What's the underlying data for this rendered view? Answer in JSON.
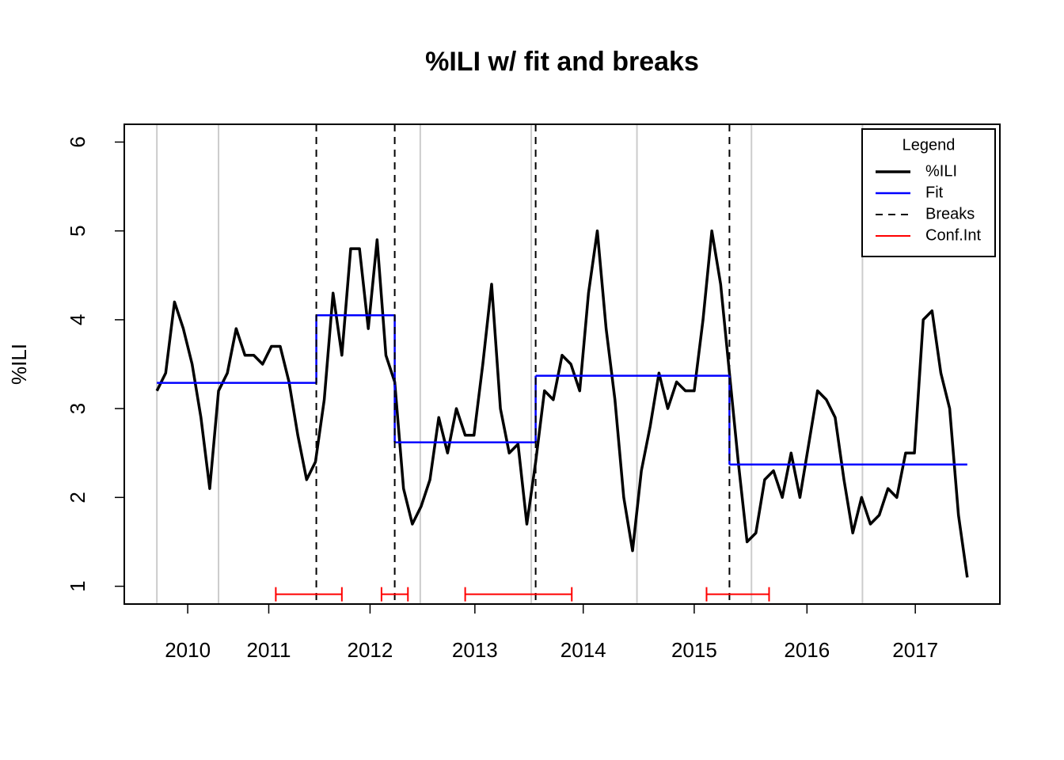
{
  "chart_data": {
    "type": "line",
    "title": "%ILI w/ fit and breaks",
    "y_label": "%ILI",
    "xlim": [
      -2.7,
      96.7
    ],
    "ylim": [
      0.8,
      6.2
    ],
    "xticks": [
      {
        "value": 4.5,
        "label": "2010"
      },
      {
        "value": 13.7,
        "label": "2011"
      },
      {
        "value": 25.2,
        "label": "2012"
      },
      {
        "value": 37.1,
        "label": "2013"
      },
      {
        "value": 49.4,
        "label": "2014"
      },
      {
        "value": 62.0,
        "label": "2015"
      },
      {
        "value": 74.8,
        "label": "2016"
      },
      {
        "value": 87.1,
        "label": "2017"
      }
    ],
    "yticks": [
      1,
      2,
      3,
      4,
      5,
      6
    ],
    "series": [
      {
        "name": "%ILI",
        "color": "#000000",
        "x": [
          1,
          2,
          3,
          4,
          5,
          6,
          7,
          8,
          9,
          10,
          11,
          12,
          13,
          14,
          15,
          16,
          17,
          18,
          19,
          20,
          21,
          22,
          23,
          24,
          25,
          26,
          27,
          28,
          29,
          30,
          31,
          32,
          33,
          34,
          35,
          36,
          37,
          38,
          39,
          40,
          41,
          42,
          43,
          44,
          45,
          46,
          47,
          48,
          49,
          50,
          51,
          52,
          53,
          54,
          55,
          56,
          57,
          58,
          59,
          60,
          61,
          62,
          63,
          64,
          65,
          66,
          67,
          68,
          69,
          70,
          71,
          72,
          73,
          74,
          75,
          76,
          77,
          78,
          79,
          80,
          81,
          82,
          83,
          84,
          85,
          86,
          87,
          88,
          89,
          90,
          91,
          92,
          93
        ],
        "values": [
          3.2,
          3.4,
          4.2,
          3.9,
          3.5,
          2.9,
          2.1,
          3.2,
          3.4,
          3.9,
          3.6,
          3.6,
          3.5,
          3.7,
          3.7,
          3.3,
          2.7,
          2.2,
          2.4,
          3.1,
          4.3,
          3.6,
          4.8,
          4.8,
          3.9,
          4.9,
          3.6,
          3.3,
          2.1,
          1.7,
          1.9,
          2.2,
          2.9,
          2.5,
          3.0,
          2.7,
          2.7,
          3.5,
          4.4,
          3.0,
          2.5,
          2.6,
          1.7,
          2.4,
          3.2,
          3.1,
          3.6,
          3.5,
          3.2,
          4.3,
          5.0,
          3.9,
          3.1,
          2.0,
          1.4,
          2.3,
          2.8,
          3.4,
          3.0,
          3.3,
          3.2,
          3.2,
          4.0,
          5.0,
          4.4,
          3.4,
          2.4,
          1.5,
          1.6,
          2.2,
          2.3,
          2.0,
          2.5,
          2.0,
          2.6,
          3.2,
          3.1,
          2.9,
          2.2,
          1.6,
          2.0,
          1.7,
          1.8,
          2.1,
          2.0,
          2.5,
          2.5,
          4.0,
          4.1,
          3.4,
          3.0,
          1.8,
          1.1
        ]
      }
    ],
    "fit": {
      "name": "Fit",
      "color": "#0000ff",
      "segments": [
        {
          "start": 1,
          "end": 19.1,
          "value": 3.29
        },
        {
          "start": 19.1,
          "end": 28,
          "value": 4.05
        },
        {
          "start": 28,
          "end": 44,
          "value": 2.62
        },
        {
          "start": 44,
          "end": 66,
          "value": 3.37
        },
        {
          "start": 66,
          "end": 93,
          "value": 2.37
        }
      ]
    },
    "breaks": {
      "name": "Breaks",
      "color": "#000000",
      "x": [
        19.1,
        28,
        44,
        66
      ]
    },
    "conf_int": {
      "name": "Conf.Int",
      "color": "#ff0000",
      "level": 0.91,
      "intervals": [
        {
          "start": 14.5,
          "end": 22
        },
        {
          "start": 26.5,
          "end": 29.5
        },
        {
          "start": 36,
          "end": 48.1
        },
        {
          "start": 63.4,
          "end": 70.5
        }
      ]
    },
    "season_lines": {
      "color": "#cccccc",
      "x": [
        1,
        8,
        30.9,
        43.5,
        55.5,
        68.5,
        81.1
      ]
    },
    "legend": {
      "title": "Legend",
      "position": "top-right"
    }
  }
}
